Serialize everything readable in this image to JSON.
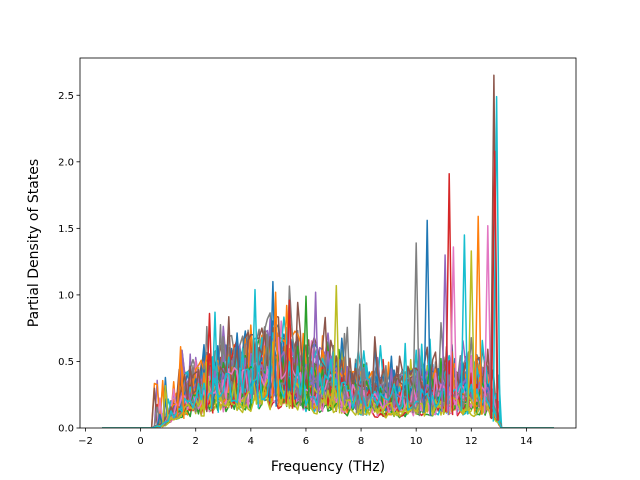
{
  "chart_data": {
    "type": "line",
    "title": "",
    "xlabel": "Frequency (THz)",
    "ylabel": "Partial Density of States",
    "xlim": [
      -2.2,
      15.8
    ],
    "ylim": [
      0.0,
      2.78
    ],
    "x_ticks": [
      -2,
      0,
      2,
      4,
      6,
      8,
      10,
      12,
      14
    ],
    "y_ticks": [
      0.0,
      0.5,
      1.0,
      1.5,
      2.0,
      2.5
    ],
    "x_tick_labels": [
      "−2",
      "0",
      "2",
      "4",
      "6",
      "8",
      "10",
      "12",
      "14"
    ],
    "y_tick_labels": [
      "0.0",
      "0.5",
      "1.0",
      "1.5",
      "2.0",
      "2.5"
    ],
    "grid": false,
    "legend": false,
    "colors": [
      "#1f77b4",
      "#ff7f0e",
      "#2ca02c",
      "#d62728",
      "#9467bd",
      "#8c564b",
      "#e377c2",
      "#7f7f7f",
      "#bcbd22",
      "#17becf"
    ],
    "series_count": 40,
    "freq_min": -1.4,
    "freq_max": 15.0,
    "freq_step": 0.1,
    "envelope": {
      "x": [
        -1.4,
        0.4,
        0.8,
        1.2,
        1.6,
        2.0,
        3.0,
        4.0,
        4.8,
        5.5,
        6.0,
        7.0,
        8.0,
        9.0,
        10.0,
        11.0,
        12.0,
        12.5,
        12.8,
        13.1,
        15.0
      ],
      "y": [
        0.0,
        0.0,
        0.03,
        0.15,
        0.25,
        0.3,
        0.38,
        0.45,
        0.5,
        0.45,
        0.4,
        0.35,
        0.28,
        0.25,
        0.28,
        0.3,
        0.32,
        0.3,
        0.2,
        0.0,
        0.0
      ]
    },
    "peaks": [
      {
        "x": 1.45,
        "y": 0.61,
        "color": "#ff7f0e"
      },
      {
        "x": 2.5,
        "y": 0.86,
        "color": "#d62728"
      },
      {
        "x": 2.7,
        "y": 0.87,
        "color": "#17becf"
      },
      {
        "x": 4.15,
        "y": 1.04,
        "color": "#17becf"
      },
      {
        "x": 4.8,
        "y": 1.1,
        "color": "#1f77b4"
      },
      {
        "x": 4.9,
        "y": 1.02,
        "color": "#ff7f0e"
      },
      {
        "x": 5.4,
        "y": 0.96,
        "color": "#d62728"
      },
      {
        "x": 6.0,
        "y": 0.99,
        "color": "#2ca02c"
      },
      {
        "x": 6.35,
        "y": 1.02,
        "color": "#9467bd"
      },
      {
        "x": 7.1,
        "y": 1.07,
        "color": "#bcbd22"
      },
      {
        "x": 7.95,
        "y": 0.93,
        "color": "#7f7f7f"
      },
      {
        "x": 10.0,
        "y": 1.39,
        "color": "#7f7f7f"
      },
      {
        "x": 10.4,
        "y": 1.56,
        "color": "#1f77b4"
      },
      {
        "x": 11.05,
        "y": 1.3,
        "color": "#9467bd"
      },
      {
        "x": 11.2,
        "y": 1.91,
        "color": "#d62728"
      },
      {
        "x": 11.35,
        "y": 1.36,
        "color": "#e377c2"
      },
      {
        "x": 11.75,
        "y": 1.45,
        "color": "#17becf"
      },
      {
        "x": 12.0,
        "y": 1.33,
        "color": "#bcbd22"
      },
      {
        "x": 12.25,
        "y": 1.59,
        "color": "#ff7f0e"
      },
      {
        "x": 12.6,
        "y": 1.52,
        "color": "#e377c2"
      },
      {
        "x": 12.82,
        "y": 2.65,
        "color": "#8c564b"
      },
      {
        "x": 12.92,
        "y": 2.49,
        "color": "#17becf"
      },
      {
        "x": 12.85,
        "y": 2.08,
        "color": "#d62728"
      }
    ]
  }
}
